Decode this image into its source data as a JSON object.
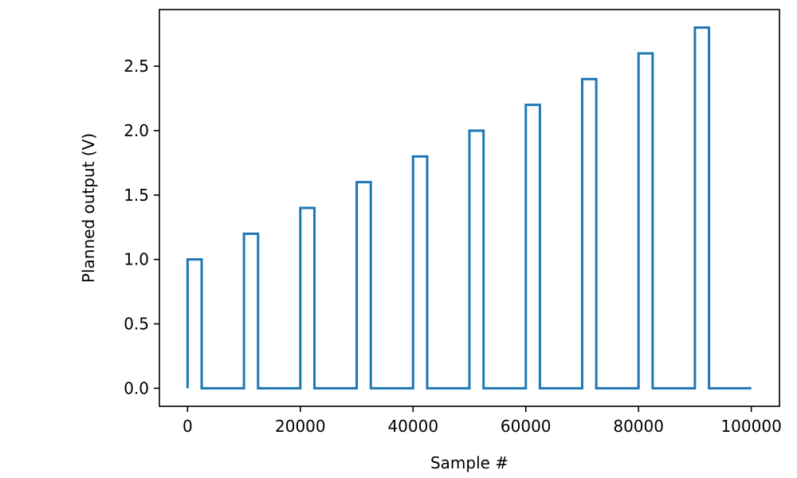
{
  "chart_data": {
    "type": "line",
    "title": "",
    "xlabel": "Sample #",
    "ylabel": "Planned output (V)",
    "xlim": [
      -5000,
      105000
    ],
    "ylim": [
      -0.14,
      2.94
    ],
    "grid": false,
    "legend": "none",
    "xticks": [
      0,
      20000,
      40000,
      60000,
      80000,
      100000
    ],
    "xtick_labels": [
      "0",
      "20000",
      "40000",
      "60000",
      "80000",
      "100000"
    ],
    "yticks": [
      0.0,
      0.5,
      1.0,
      1.5,
      2.0,
      2.5
    ],
    "ytick_labels": [
      "0.0",
      "0.5",
      "1.0",
      "1.5",
      "2.0",
      "2.5"
    ],
    "series": [
      {
        "color": "#1f77b4",
        "step": "post",
        "x": [
          0,
          2500,
          10000,
          12500,
          20000,
          22500,
          30000,
          32500,
          40000,
          42500,
          50000,
          52500,
          60000,
          62500,
          70000,
          72500,
          80000,
          82500,
          90000,
          92500,
          100000
        ],
        "y": [
          1.0,
          0.0,
          1.2,
          0.0,
          1.4,
          0.0,
          1.6,
          0.0,
          1.8,
          0.0,
          2.0,
          0.0,
          2.2,
          0.0,
          2.4,
          0.0,
          2.6,
          0.0,
          2.8,
          0.0,
          0.0
        ]
      }
    ]
  }
}
